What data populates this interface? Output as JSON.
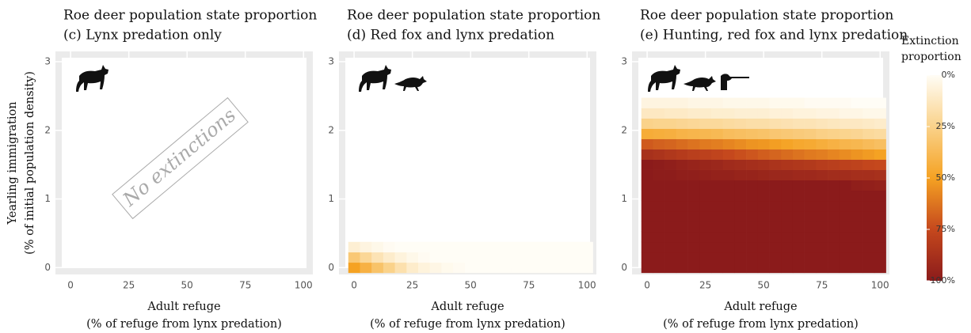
{
  "chart_data": [
    {
      "type": "heatmap",
      "title": "Roe deer population state proportion",
      "subtitle": "(c) Lynx predation only",
      "xlabel": [
        "Adult refuge",
        "(% of  refuge from lynx predation)"
      ],
      "ylabel": [
        "Yearling immigration",
        "(% of  initial population density)"
      ],
      "annotation": "No extinctions",
      "xlim": [
        -6.5,
        104
      ],
      "ylim": [
        -0.1,
        3.15
      ],
      "xticks": [
        0,
        25,
        50,
        75,
        100
      ],
      "yticks": [
        0,
        1,
        2,
        3
      ]
    },
    {
      "type": "heatmap",
      "title": "Roe deer population state proportion",
      "subtitle": "(d) Red fox and lynx predation",
      "xlabel": [
        "Adult refuge",
        "(% of  refuge from lynx predation)"
      ],
      "xlim": [
        -6.5,
        104
      ],
      "ylim": [
        -0.1,
        3.15
      ],
      "xticks": [
        0,
        25,
        50,
        75,
        100
      ],
      "yticks": [
        0,
        1,
        2,
        3
      ],
      "x": [
        0,
        5,
        10,
        15,
        20,
        25,
        30,
        35,
        40,
        45,
        50,
        55,
        60,
        65,
        70,
        75,
        80,
        85,
        90,
        95,
        100
      ],
      "y": [
        0,
        0.15,
        0.3
      ],
      "values": [
        [
          50,
          42,
          33,
          25,
          17,
          10,
          6,
          4,
          2,
          1,
          0,
          0,
          0,
          0,
          0,
          0,
          0,
          0,
          0,
          0,
          0
        ],
        [
          30,
          22,
          15,
          10,
          6,
          3,
          1,
          0,
          0,
          0,
          0,
          0,
          0,
          0,
          0,
          0,
          0,
          0,
          0,
          0,
          0
        ],
        [
          8,
          5,
          3,
          1,
          0,
          0,
          0,
          0,
          0,
          0,
          0,
          0,
          0,
          0,
          0,
          0,
          0,
          0,
          0,
          0,
          0
        ]
      ]
    },
    {
      "type": "heatmap",
      "title": "Roe deer population state proportion",
      "subtitle": "(e) Hunting, red fox and lynx predation",
      "xlabel": [
        "Adult refuge",
        "(% of  refuge from lynx predation)"
      ],
      "xlim": [
        -6.5,
        104
      ],
      "ylim": [
        -0.1,
        3.15
      ],
      "xticks": [
        0,
        25,
        50,
        75,
        100
      ],
      "yticks": [
        0,
        1,
        2,
        3
      ],
      "x": [
        0,
        5,
        10,
        15,
        20,
        25,
        30,
        35,
        40,
        45,
        50,
        55,
        60,
        65,
        70,
        75,
        80,
        85,
        90,
        95,
        100
      ],
      "y": [
        0,
        0.15,
        0.3,
        0.45,
        0.6,
        0.75,
        0.9,
        1.05,
        1.2,
        1.35,
        1.5,
        1.65,
        1.8,
        1.95,
        2.1,
        2.25,
        2.4
      ],
      "values": [
        [
          100,
          100,
          100,
          100,
          100,
          100,
          100,
          100,
          100,
          100,
          100,
          100,
          100,
          100,
          100,
          100,
          100,
          100,
          100,
          100,
          100
        ],
        [
          100,
          100,
          100,
          100,
          100,
          100,
          100,
          100,
          100,
          100,
          100,
          100,
          100,
          100,
          100,
          100,
          100,
          100,
          100,
          100,
          100
        ],
        [
          100,
          100,
          100,
          100,
          100,
          100,
          100,
          100,
          100,
          100,
          100,
          100,
          100,
          100,
          100,
          100,
          100,
          100,
          100,
          100,
          100
        ],
        [
          100,
          100,
          100,
          100,
          100,
          100,
          100,
          100,
          100,
          100,
          100,
          100,
          100,
          100,
          100,
          100,
          100,
          100,
          100,
          100,
          100
        ],
        [
          100,
          100,
          100,
          100,
          100,
          100,
          100,
          100,
          100,
          100,
          100,
          100,
          100,
          100,
          100,
          100,
          100,
          100,
          100,
          100,
          100
        ],
        [
          100,
          100,
          100,
          100,
          100,
          100,
          100,
          100,
          100,
          100,
          100,
          100,
          100,
          100,
          100,
          100,
          100,
          100,
          100,
          100,
          100
        ],
        [
          100,
          100,
          100,
          100,
          100,
          100,
          100,
          100,
          100,
          100,
          100,
          100,
          100,
          100,
          100,
          100,
          100,
          100,
          100,
          100,
          100
        ],
        [
          100,
          100,
          100,
          100,
          100,
          100,
          100,
          100,
          100,
          100,
          100,
          100,
          100,
          100,
          100,
          100,
          100,
          100,
          100,
          100,
          100
        ],
        [
          100,
          100,
          100,
          100,
          100,
          100,
          100,
          100,
          100,
          100,
          100,
          100,
          100,
          100,
          100,
          100,
          100,
          100,
          98,
          97,
          96
        ],
        [
          100,
          99,
          99,
          98,
          98,
          97,
          96,
          96,
          95,
          95,
          94,
          93,
          93,
          92,
          92,
          91,
          90,
          90,
          89,
          89,
          88
        ],
        [
          100,
          99,
          98,
          96,
          95,
          94,
          93,
          91,
          90,
          89,
          88,
          86,
          85,
          84,
          83,
          81,
          80,
          79,
          78,
          76,
          75
        ],
        [
          88,
          86,
          84,
          82,
          80,
          79,
          77,
          75,
          73,
          71,
          69,
          67,
          65,
          63,
          61,
          60,
          58,
          56,
          54,
          52,
          50
        ],
        [
          70,
          68,
          67,
          65,
          63,
          61,
          60,
          58,
          56,
          54,
          53,
          51,
          49,
          47,
          46,
          44,
          42,
          40,
          39,
          37,
          35
        ],
        [
          45,
          44,
          43,
          41,
          40,
          39,
          38,
          36,
          35,
          34,
          33,
          31,
          30,
          29,
          28,
          26,
          25,
          24,
          23,
          21,
          20
        ],
        [
          25,
          24,
          24,
          23,
          22,
          21,
          21,
          20,
          19,
          18,
          18,
          17,
          16,
          15,
          15,
          14,
          13,
          12,
          12,
          11,
          10
        ],
        [
          12,
          12,
          11,
          11,
          10,
          10,
          9,
          9,
          8,
          8,
          8,
          7,
          7,
          6,
          6,
          5,
          5,
          4,
          4,
          3,
          3
        ],
        [
          5,
          5,
          5,
          5,
          4,
          4,
          4,
          3,
          3,
          3,
          3,
          2,
          2,
          2,
          1,
          1,
          1,
          1,
          0,
          0,
          0
        ]
      ],
      "colorbar": {
        "title": "Extinction proportion",
        "ticks": [
          {
            "value": 0,
            "label": "0%"
          },
          {
            "value": 25,
            "label": "25%"
          },
          {
            "value": 50,
            "label": "50%"
          },
          {
            "value": 75,
            "label": "75%"
          },
          {
            "value": 100,
            "label": "100%"
          }
        ],
        "colors": [
          "#fffdf6",
          "#fad28a",
          "#f5a223",
          "#c5481d",
          "#8b1b1b"
        ]
      }
    }
  ]
}
